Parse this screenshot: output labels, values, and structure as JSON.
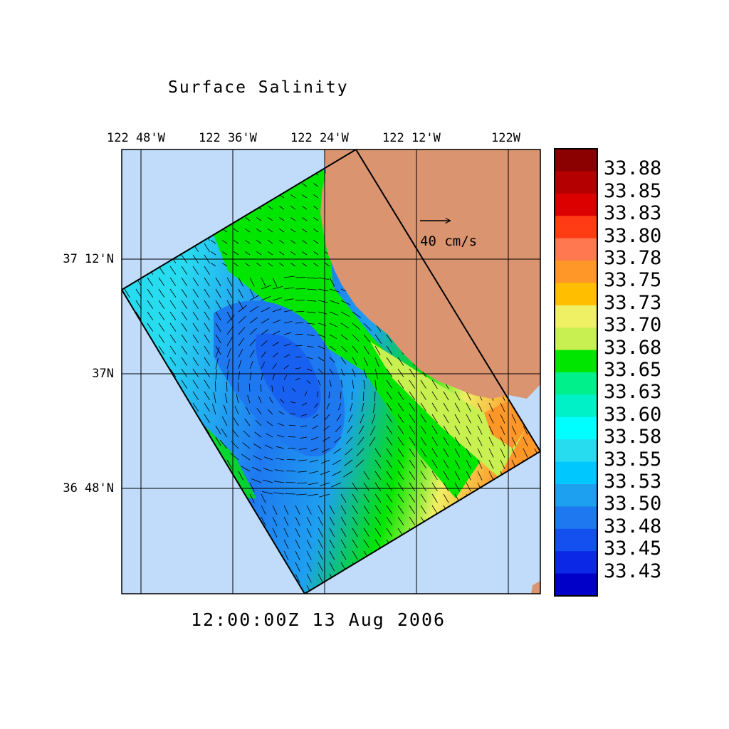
{
  "title": "Surface Salinity",
  "timestamp": "12:00:00Z  13 Aug 2006",
  "lon_labels": [
    "122 48'W",
    "122 36'W",
    "122 24'W",
    "122 12'W",
    "122W"
  ],
  "lat_labels": [
    "37 12'N",
    "37N",
    "36 48'N"
  ],
  "scale_vector": {
    "label": "40 cm/s",
    "speed_cm_s": 40
  },
  "colorbar": {
    "labels": [
      "33.88",
      "33.85",
      "33.83",
      "33.80",
      "33.78",
      "33.75",
      "33.73",
      "33.70",
      "33.68",
      "33.65",
      "33.63",
      "33.60",
      "33.58",
      "33.55",
      "33.53",
      "33.50",
      "33.48",
      "33.45",
      "33.43"
    ],
    "colors": [
      "#8b0000",
      "#b40000",
      "#dc0000",
      "#ff3c14",
      "#ff7850",
      "#ff9628",
      "#ffbe00",
      "#f0f064",
      "#c8f050",
      "#00e600",
      "#00f08c",
      "#00f0c8",
      "#00ffff",
      "#28dcf0",
      "#00c8ff",
      "#1ea0f0",
      "#1e78f0",
      "#1450f0",
      "#0a28e6",
      "#0000c8"
    ]
  },
  "colors": {
    "ocean": "#c0dcfa",
    "land": "#da9470"
  }
}
